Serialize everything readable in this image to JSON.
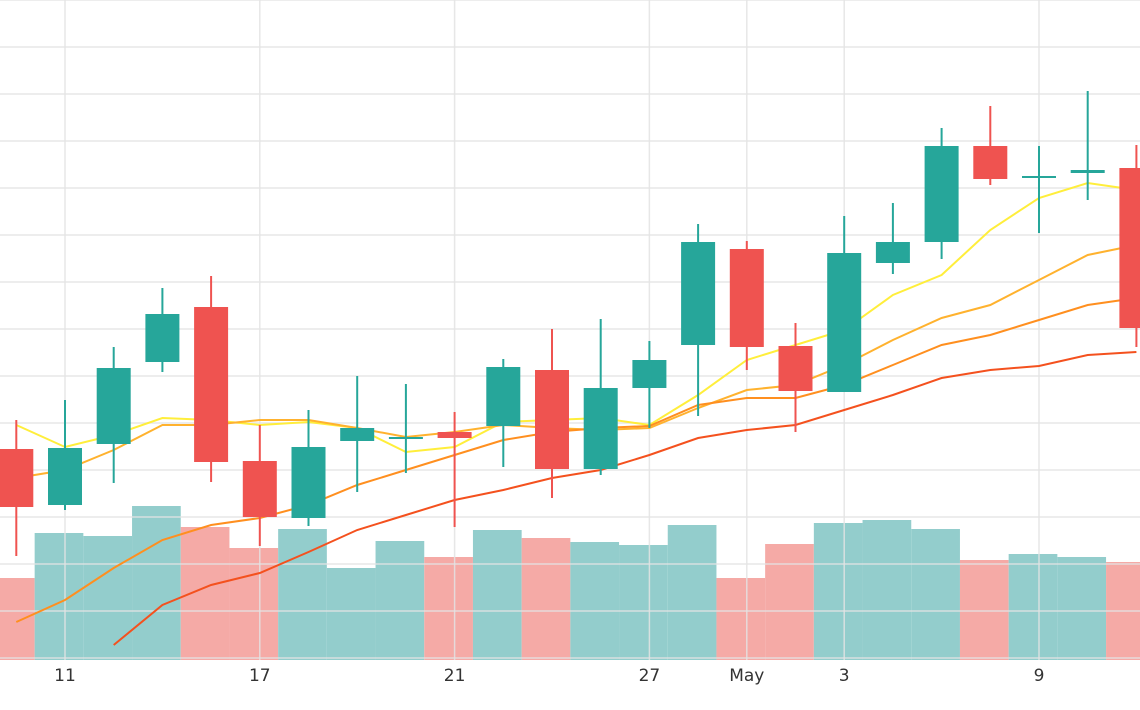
{
  "chart_data": {
    "type": "candlestick",
    "categories": [
      null,
      "11",
      null,
      null,
      null,
      "17",
      null,
      null,
      null,
      "21",
      null,
      null,
      null,
      "27",
      null,
      "May",
      null,
      "3",
      null,
      null,
      null,
      "9",
      null,
      null
    ],
    "open": [
      209,
      153,
      214,
      296,
      351,
      197,
      140,
      217,
      219,
      226,
      232,
      288,
      189,
      270,
      313,
      409,
      312,
      266,
      395,
      416,
      512,
      481,
      485,
      490
    ],
    "high": [
      238,
      258,
      311,
      370,
      382,
      233,
      248,
      282,
      274,
      246,
      299,
      329,
      339,
      317,
      434,
      417,
      335,
      442,
      455,
      530,
      552,
      512,
      567,
      513
    ],
    "low": [
      102,
      148,
      175,
      286,
      176,
      112,
      132,
      166,
      185,
      131,
      191,
      160,
      183,
      230,
      242,
      288,
      226,
      266,
      384,
      399,
      473,
      425,
      458,
      311
    ],
    "close": [
      151,
      210,
      290,
      344,
      196,
      141,
      211,
      230,
      221,
      220,
      291,
      189,
      270,
      298,
      416,
      311,
      267,
      405,
      416,
      512,
      479,
      482,
      488,
      330
    ],
    "volume": [
      80,
      125,
      122,
      152,
      131,
      110,
      129,
      90,
      117,
      101,
      128,
      120,
      116,
      113,
      133,
      80,
      114,
      135,
      138,
      129,
      98,
      104,
      101,
      96
    ],
    "up_color": "#26a69a",
    "down_color": "#ef5350",
    "volume_up_color": "#93cdcc",
    "volume_down_color": "#f5aaa6",
    "series": [
      {
        "color": "#ffee3b",
        "values": [
          233,
          211,
          223,
          240,
          238,
          233,
          236,
          230,
          206,
          211,
          236,
          238,
          240,
          233,
          263,
          298,
          313,
          328,
          363,
          383,
          428,
          460,
          475,
          468
        ]
      },
      {
        "color": "#ffb22e",
        "values": [
          180,
          188,
          208,
          233,
          233,
          238,
          238,
          230,
          221,
          226,
          233,
          230,
          228,
          230,
          250,
          268,
          273,
          293,
          318,
          340,
          353,
          378,
          403,
          413
        ]
      },
      {
        "color": "#ff8f1f",
        "values": [
          36,
          58,
          90,
          118,
          133,
          140,
          153,
          173,
          188,
          203,
          218,
          226,
          230,
          232,
          253,
          260,
          260,
          273,
          293,
          313,
          323,
          338,
          353,
          360
        ]
      },
      {
        "color": "#f4511e",
        "values": [
          null,
          null,
          13,
          53,
          73,
          85,
          106,
          128,
          143,
          158,
          168,
          180,
          188,
          203,
          220,
          228,
          233,
          248,
          263,
          280,
          288,
          292,
          303,
          306
        ]
      }
    ],
    "ylim": [
      -2,
      658
    ],
    "yticks": [
      0,
      47,
      94,
      141,
      188,
      235,
      282,
      329,
      376,
      423,
      470,
      517,
      564,
      611,
      658
    ],
    "grid": true
  }
}
